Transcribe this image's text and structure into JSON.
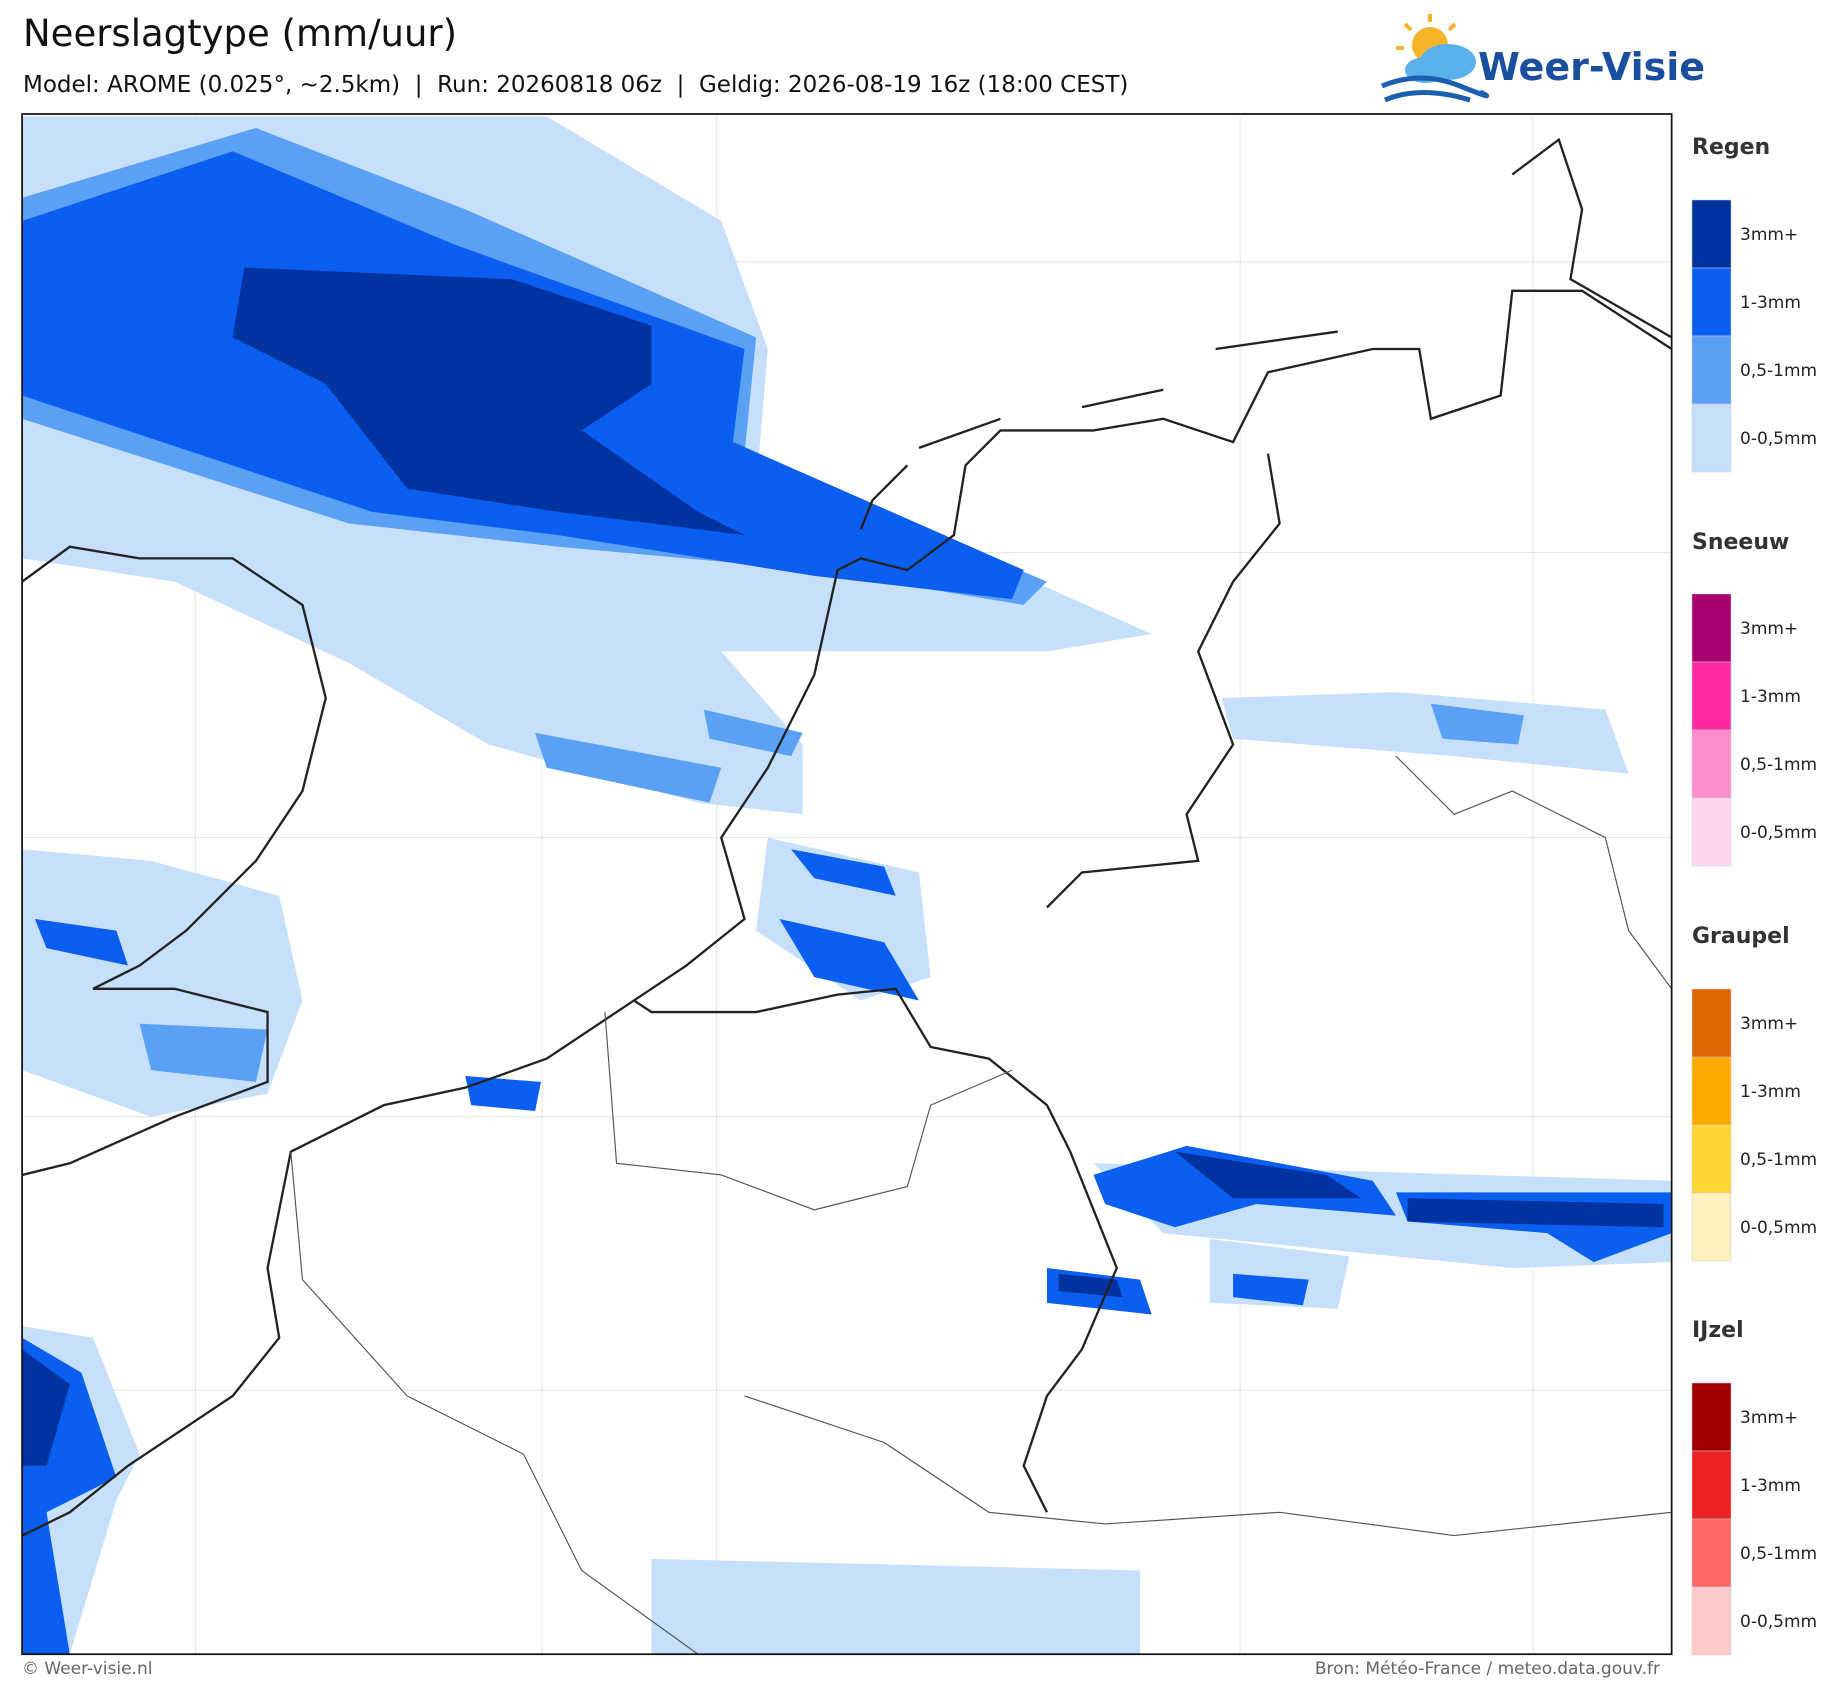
{
  "header": {
    "title": "Neerslagtype (mm/uur)",
    "subtitle": "Model: AROME (0.025°, ~2.5km)  |  Run: 20260818 06z  |  Geldig: 2026-08-19 16z (18:00 CEST)"
  },
  "logo": {
    "text": "Weer-Visie"
  },
  "legend": [
    {
      "title": "Regen",
      "colors": [
        "#0033a0",
        "#0a5ef0",
        "#5aa0f5",
        "#c6dffb"
      ],
      "labels": [
        "3mm+",
        "1-3mm",
        "0,5-1mm",
        "0-0,5mm"
      ]
    },
    {
      "title": "Sneeuw",
      "colors": [
        "#a8006f",
        "#ff2aa0",
        "#ff8ccc",
        "#ffd6ee"
      ],
      "labels": [
        "3mm+",
        "1-3mm",
        "0,5-1mm",
        "0-0,5mm"
      ]
    },
    {
      "title": "Graupel",
      "colors": [
        "#dd6600",
        "#ffaa00",
        "#ffd633",
        "#fff0c0"
      ],
      "labels": [
        "3mm+",
        "1-3mm",
        "0,5-1mm",
        "0-0,5mm"
      ]
    },
    {
      "title": "IJzel",
      "colors": [
        "#a00000",
        "#ee2222",
        "#ff6666",
        "#ffcccc"
      ],
      "labels": [
        "3mm+",
        "1-3mm",
        "0,5-1mm",
        "0-0,5mm"
      ]
    }
  ],
  "footer": {
    "left": "© Weer-visie.nl",
    "right": "Bron: Météo-France / meteo.data.gouv.fr"
  }
}
